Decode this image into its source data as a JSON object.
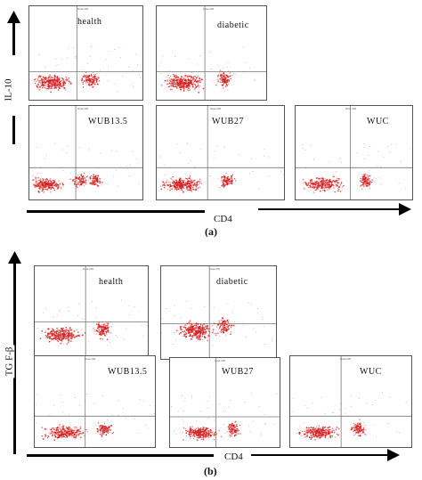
{
  "chart_data": [
    {
      "type": "scatter",
      "title": "",
      "caption": "(a)",
      "xlabel": "CD4",
      "ylabel": "IL-10",
      "grid": false,
      "panels": [
        {
          "label": "health"
        },
        {
          "label": "diabetic"
        },
        {
          "label": "WUB13.5"
        },
        {
          "label": "WUB27"
        },
        {
          "label": "WUC"
        }
      ]
    },
    {
      "type": "scatter",
      "title": "",
      "caption": "(b)",
      "xlabel": "CD4",
      "ylabel": "TG F-β",
      "grid": false,
      "panels": [
        {
          "label": "health"
        },
        {
          "label": "diabetic"
        },
        {
          "label": "WUB13.5"
        },
        {
          "label": "WUB27"
        },
        {
          "label": "WUC"
        }
      ]
    }
  ],
  "colors": {
    "dots": "#d42020",
    "frame": "#555555"
  }
}
